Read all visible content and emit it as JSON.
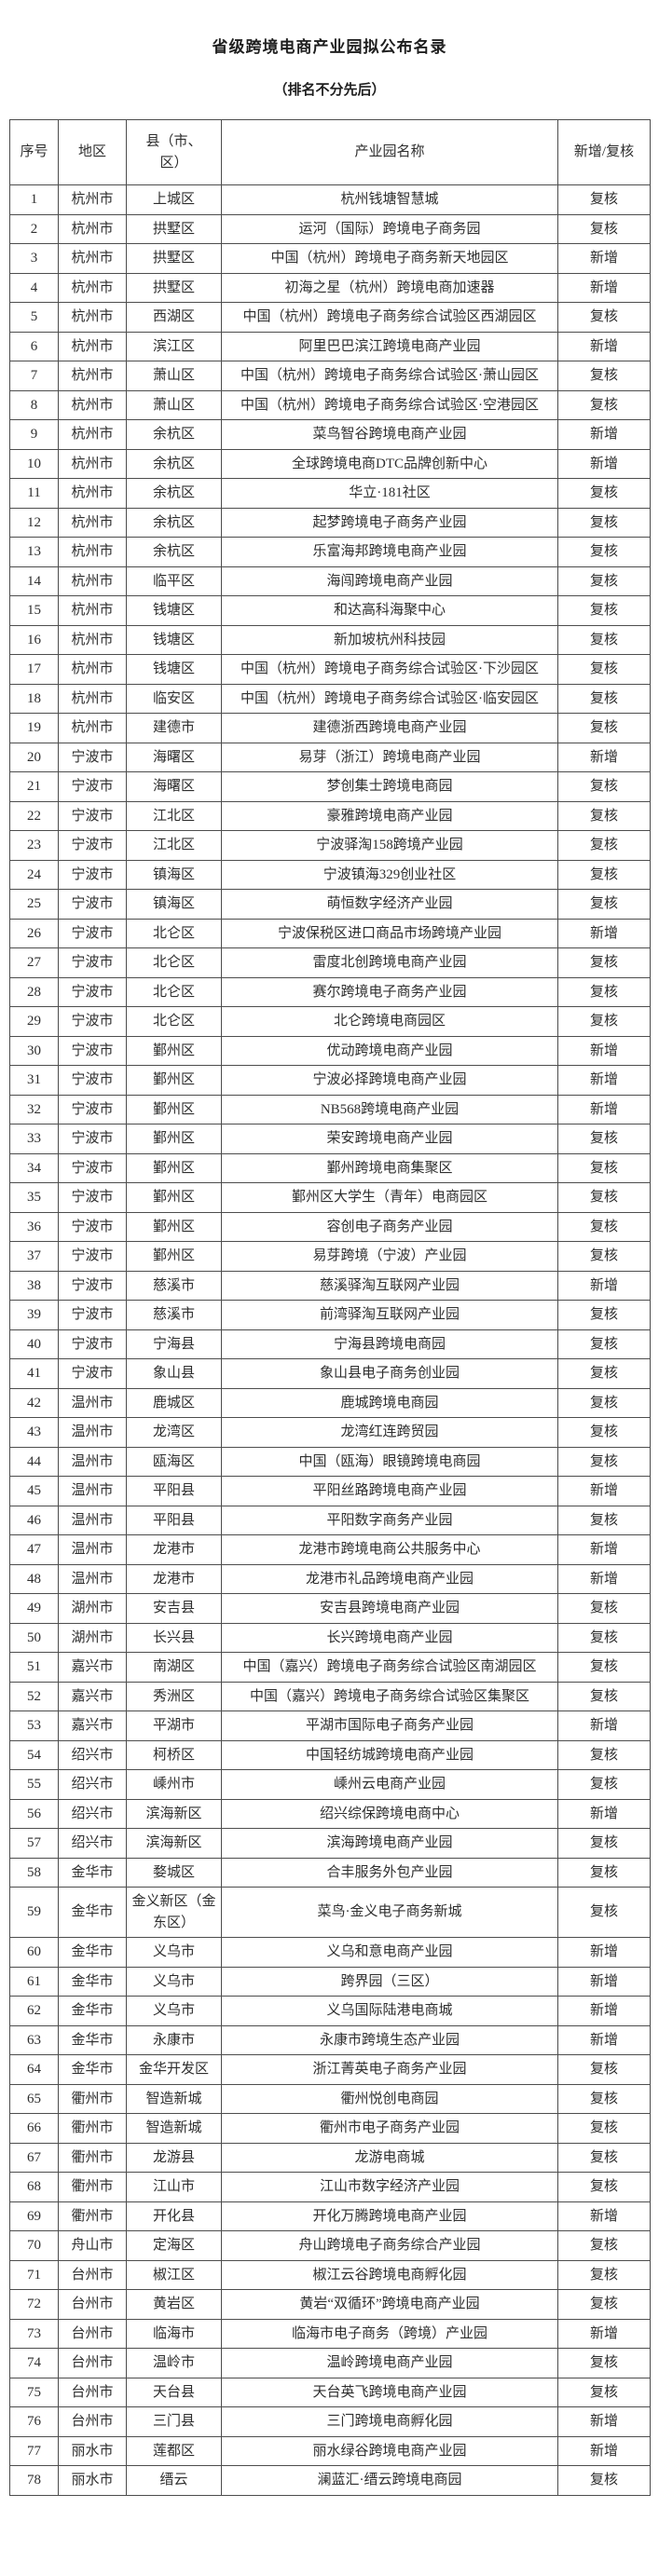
{
  "page": {
    "title": "省级跨境电商产业园拟公布名录",
    "subtitle": "（排名不分先后）"
  },
  "table": {
    "headers": [
      "序号",
      "地区",
      "县（市、区）",
      "产业园名称",
      "新增/复核"
    ],
    "rows": [
      [
        "1",
        "杭州市",
        "上城区",
        "杭州钱塘智慧城",
        "复核"
      ],
      [
        "2",
        "杭州市",
        "拱墅区",
        "运河（国际）跨境电子商务园",
        "复核"
      ],
      [
        "3",
        "杭州市",
        "拱墅区",
        "中国（杭州）跨境电子商务新天地园区",
        "新增"
      ],
      [
        "4",
        "杭州市",
        "拱墅区",
        "初海之星（杭州）跨境电商加速器",
        "新增"
      ],
      [
        "5",
        "杭州市",
        "西湖区",
        "中国（杭州）跨境电子商务综合试验区西湖园区",
        "复核"
      ],
      [
        "6",
        "杭州市",
        "滨江区",
        "阿里巴巴滨江跨境电商产业园",
        "新增"
      ],
      [
        "7",
        "杭州市",
        "萧山区",
        "中国（杭州）跨境电子商务综合试验区·萧山园区",
        "复核"
      ],
      [
        "8",
        "杭州市",
        "萧山区",
        "中国（杭州）跨境电子商务综合试验区·空港园区",
        "复核"
      ],
      [
        "9",
        "杭州市",
        "余杭区",
        "菜鸟智谷跨境电商产业园",
        "新增"
      ],
      [
        "10",
        "杭州市",
        "余杭区",
        "全球跨境电商DTC品牌创新中心",
        "新增"
      ],
      [
        "11",
        "杭州市",
        "余杭区",
        "华立·181社区",
        "复核"
      ],
      [
        "12",
        "杭州市",
        "余杭区",
        "起梦跨境电子商务产业园",
        "复核"
      ],
      [
        "13",
        "杭州市",
        "余杭区",
        "乐富海邦跨境电商产业园",
        "复核"
      ],
      [
        "14",
        "杭州市",
        "临平区",
        "海闯跨境电商产业园",
        "复核"
      ],
      [
        "15",
        "杭州市",
        "钱塘区",
        "和达高科海聚中心",
        "复核"
      ],
      [
        "16",
        "杭州市",
        "钱塘区",
        "新加坡杭州科技园",
        "复核"
      ],
      [
        "17",
        "杭州市",
        "钱塘区",
        "中国（杭州）跨境电子商务综合试验区·下沙园区",
        "复核"
      ],
      [
        "18",
        "杭州市",
        "临安区",
        "中国（杭州）跨境电子商务综合试验区·临安园区",
        "复核"
      ],
      [
        "19",
        "杭州市",
        "建德市",
        "建德浙西跨境电商产业园",
        "复核"
      ],
      [
        "20",
        "宁波市",
        "海曙区",
        "易芽（浙江）跨境电商产业园",
        "新增"
      ],
      [
        "21",
        "宁波市",
        "海曙区",
        "梦创集士跨境电商园",
        "复核"
      ],
      [
        "22",
        "宁波市",
        "江北区",
        "豪雅跨境电商产业园",
        "复核"
      ],
      [
        "23",
        "宁波市",
        "江北区",
        "宁波驿淘158跨境产业园",
        "复核"
      ],
      [
        "24",
        "宁波市",
        "镇海区",
        "宁波镇海329创业社区",
        "复核"
      ],
      [
        "25",
        "宁波市",
        "镇海区",
        "萌恒数字经济产业园",
        "复核"
      ],
      [
        "26",
        "宁波市",
        "北仑区",
        "宁波保税区进口商品市场跨境产业园",
        "新增"
      ],
      [
        "27",
        "宁波市",
        "北仑区",
        "雷度北创跨境电商产业园",
        "复核"
      ],
      [
        "28",
        "宁波市",
        "北仑区",
        "赛尔跨境电子商务产业园",
        "复核"
      ],
      [
        "29",
        "宁波市",
        "北仑区",
        "北仑跨境电商园区",
        "复核"
      ],
      [
        "30",
        "宁波市",
        "鄞州区",
        "优动跨境电商产业园",
        "新增"
      ],
      [
        "31",
        "宁波市",
        "鄞州区",
        "宁波必择跨境电商产业园",
        "新增"
      ],
      [
        "32",
        "宁波市",
        "鄞州区",
        "NB568跨境电商产业园",
        "新增"
      ],
      [
        "33",
        "宁波市",
        "鄞州区",
        "荣安跨境电商产业园",
        "复核"
      ],
      [
        "34",
        "宁波市",
        "鄞州区",
        "鄞州跨境电商集聚区",
        "复核"
      ],
      [
        "35",
        "宁波市",
        "鄞州区",
        "鄞州区大学生（青年）电商园区",
        "复核"
      ],
      [
        "36",
        "宁波市",
        "鄞州区",
        "容创电子商务产业园",
        "复核"
      ],
      [
        "37",
        "宁波市",
        "鄞州区",
        "易芽跨境（宁波）产业园",
        "复核"
      ],
      [
        "38",
        "宁波市",
        "慈溪市",
        "慈溪驿淘互联网产业园",
        "新增"
      ],
      [
        "39",
        "宁波市",
        "慈溪市",
        "前湾驿淘互联网产业园",
        "复核"
      ],
      [
        "40",
        "宁波市",
        "宁海县",
        "宁海县跨境电商园",
        "复核"
      ],
      [
        "41",
        "宁波市",
        "象山县",
        "象山县电子商务创业园",
        "复核"
      ],
      [
        "42",
        "温州市",
        "鹿城区",
        "鹿城跨境电商园",
        "复核"
      ],
      [
        "43",
        "温州市",
        "龙湾区",
        "龙湾红连跨贸园",
        "复核"
      ],
      [
        "44",
        "温州市",
        "瓯海区",
        "中国（瓯海）眼镜跨境电商园",
        "复核"
      ],
      [
        "45",
        "温州市",
        "平阳县",
        "平阳丝路跨境电商产业园",
        "新增"
      ],
      [
        "46",
        "温州市",
        "平阳县",
        "平阳数字商务产业园",
        "复核"
      ],
      [
        "47",
        "温州市",
        "龙港市",
        "龙港市跨境电商公共服务中心",
        "新增"
      ],
      [
        "48",
        "温州市",
        "龙港市",
        "龙港市礼品跨境电商产业园",
        "新增"
      ],
      [
        "49",
        "湖州市",
        "安吉县",
        "安吉县跨境电商产业园",
        "复核"
      ],
      [
        "50",
        "湖州市",
        "长兴县",
        "长兴跨境电商产业园",
        "复核"
      ],
      [
        "51",
        "嘉兴市",
        "南湖区",
        "中国（嘉兴）跨境电子商务综合试验区南湖园区",
        "复核"
      ],
      [
        "52",
        "嘉兴市",
        "秀洲区",
        "中国（嘉兴）跨境电子商务综合试验区集聚区",
        "复核"
      ],
      [
        "53",
        "嘉兴市",
        "平湖市",
        "平湖市国际电子商务产业园",
        "新增"
      ],
      [
        "54",
        "绍兴市",
        "柯桥区",
        "中国轻纺城跨境电商产业园",
        "复核"
      ],
      [
        "55",
        "绍兴市",
        "嵊州市",
        "嵊州云电商产业园",
        "复核"
      ],
      [
        "56",
        "绍兴市",
        "滨海新区",
        "绍兴综保跨境电商中心",
        "新增"
      ],
      [
        "57",
        "绍兴市",
        "滨海新区",
        "滨海跨境电商产业园",
        "复核"
      ],
      [
        "58",
        "金华市",
        "婺城区",
        "合丰服务外包产业园",
        "复核"
      ],
      [
        "59",
        "金华市",
        "金义新区（金东区）",
        "菜鸟·金义电子商务新城",
        "复核"
      ],
      [
        "60",
        "金华市",
        "义乌市",
        "义乌和意电商产业园",
        "新增"
      ],
      [
        "61",
        "金华市",
        "义乌市",
        "跨界园（三区）",
        "新增"
      ],
      [
        "62",
        "金华市",
        "义乌市",
        "义乌国际陆港电商城",
        "新增"
      ],
      [
        "63",
        "金华市",
        "永康市",
        "永康市跨境生态产业园",
        "新增"
      ],
      [
        "64",
        "金华市",
        "金华开发区",
        "浙江菁英电子商务产业园",
        "复核"
      ],
      [
        "65",
        "衢州市",
        "智造新城",
        "衢州悦创电商园",
        "复核"
      ],
      [
        "66",
        "衢州市",
        "智造新城",
        "衢州市电子商务产业园",
        "复核"
      ],
      [
        "67",
        "衢州市",
        "龙游县",
        "龙游电商城",
        "复核"
      ],
      [
        "68",
        "衢州市",
        "江山市",
        "江山市数字经济产业园",
        "复核"
      ],
      [
        "69",
        "衢州市",
        "开化县",
        "开化万腾跨境电商产业园",
        "新增"
      ],
      [
        "70",
        "舟山市",
        "定海区",
        "舟山跨境电子商务综合产业园",
        "复核"
      ],
      [
        "71",
        "台州市",
        "椒江区",
        "椒江云谷跨境电商孵化园",
        "复核"
      ],
      [
        "72",
        "台州市",
        "黄岩区",
        "黄岩“双循环”跨境电商产业园",
        "复核"
      ],
      [
        "73",
        "台州市",
        "临海市",
        "临海市电子商务（跨境）产业园",
        "新增"
      ],
      [
        "74",
        "台州市",
        "温岭市",
        "温岭跨境电商产业园",
        "复核"
      ],
      [
        "75",
        "台州市",
        "天台县",
        "天台英飞跨境电商产业园",
        "复核"
      ],
      [
        "76",
        "台州市",
        "三门县",
        "三门跨境电商孵化园",
        "新增"
      ],
      [
        "77",
        "丽水市",
        "莲都区",
        "丽水绿谷跨境电商产业园",
        "新增"
      ],
      [
        "78",
        "丽水市",
        "缙云",
        "澜蓝汇·缙云跨境电商园",
        "复核"
      ]
    ]
  }
}
